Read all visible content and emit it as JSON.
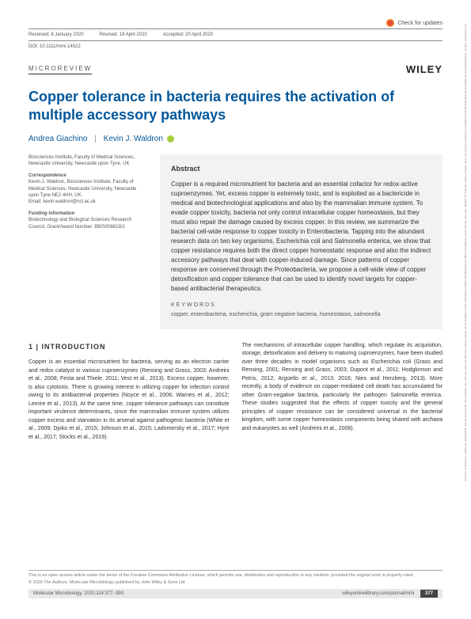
{
  "meta": {
    "checkUpdates": "Check for updates",
    "received": "Received: 8 January 2020",
    "revised": "Revised: 18 April 2020",
    "accepted": "Accepted: 20 April 2020",
    "doi": "DOI: 10.1111/mmi.14522",
    "type": "MICROREVIEW",
    "publisher": "WILEY"
  },
  "title": "Copper tolerance in bacteria requires the activation of multiple accessory pathways",
  "authors": {
    "a1": "Andrea Giachino",
    "a2": "Kevin J. Waldron"
  },
  "affil": {
    "inst": "Biosciences Institute, Faculty of Medical Sciences, Newcastle University, Newcastle upon Tyne, UK",
    "corrH": "Correspondence",
    "corr": "Kevin J. Waldron, Biosciences Institute, Faculty of Medical Sciences, Newcastle University, Newcastle upon Tyne NE2 4HH, UK.",
    "email": "Email: kevin.waldron@ncl.ac.uk",
    "fundH": "Funding information",
    "fund": "Biotechnology and Biological Sciences Research Council, Grant/Award Number: BB/S006818/1"
  },
  "abstract": {
    "h": "Abstract",
    "text": "Copper is a required micronutrient for bacteria and an essential cofactor for redox-active cuproenzymes. Yet, excess copper is extremely toxic, and is exploited as a bactericide in medical and biotechnological applications and also by the mammalian immune system. To evade copper toxicity, bacteria not only control intracellular copper homeostasis, but they must also repair the damage caused by excess copper. In this review, we summarize the bacterial cell-wide response to copper toxicity in Enterobacteria. Tapping into the abundant research data on two key organisms, Escherichia coli and Salmonella enterica, we show that copper resistance requires both the direct copper homeostatic response and also the indirect accessory pathways that deal with copper-induced damage. Since patterns of copper response are conserved through the Proteobacteria, we propose a cell-wide view of copper detoxification and copper tolerance that can be used to identify novel targets for copper-based antibacterial therapeutics.",
    "kwH": "KEYWORDS",
    "kw": "copper, enterobacteria, escherichia, gram negative bacteria, homeostasis, salmonella"
  },
  "intro": {
    "h": "1  |  INTRODUCTION",
    "p1": "Copper is an essential micronutrient for bacteria, serving as an electron carrier and redox catalyst in various cuproenzymes (Rensing and Grass, 2003; Andreini et al., 2008; Festa and Thiele, 2011; Vest et al., 2013). Excess copper, however, is also cytotoxic. There is growing interest in utilizing copper for infection control owing to its antibacterial properties (Noyce et al., 2006; Warnes et al., 2012; Lemire et al., 2013). At the same time, copper tolerance pathways can constitute important virulence determinants, since the mammalian immune system utilizes copper excess and starvation in its arsenal against pathogenic bacteria (White et al., 2009; Djoko et al., 2015; Johnson et al., 2015; Ladomersky et al., 2017; Hyre et al., 2017; Stocks et al., 2019).",
    "p2": "The mechanisms of intracellular copper handling, which regulate its acquisition, storage, detoxification and delivery to maturing cuproenzymes, have been studied over three decades in model organisms such as Escherichia coli (Grass and Rensing, 2001; Rensing and Grass, 2003; Dupont et al., 2011; Hodgkinson and Petris, 2012; Argüello et al., 2013; 2016; Nies and Herzberg, 2013). More recently, a body of evidence on copper-mediated cell death has accumulated for other Gram-negative bacteria, particularly the pathogen Salmonella enterica. These studies suggested that the effects of copper toxicity and the general principles of copper resistance can be considered universal in the bacterial kingdom, with some copper homeostasis components being shared with archaea and eukaryotes as well (Andreini et al., 2008)."
  },
  "footer": {
    "license1": "This is an open access article under the terms of the Creative Commons Attribution License, which permits use, distribution and reproduction in any medium, provided the original work is properly cited.",
    "license2": "© 2020 The Authors. Molecular Microbiology published by John Wiley & Sons Ltd",
    "journal": "Molecular Microbiology. 2020;114:377–390.",
    "url": "wileyonlinelibrary.com/journal/mmi",
    "page": "377"
  },
  "sidebar": "10.1111/mmi.14522, Downloaded from https://onlinelibrary.wiley.com/doi/10.1111/mmi.14522 by Test, Wiley Online Library on [date]. See the Terms and Conditions (https://onlinelibrary.wiley.com/terms-and-conditions) on Wiley Online Library for rules of use; OA articles are governed by the applicable Creative Commons License",
  "colors": {
    "titleBlue": "#01579b",
    "abstractBg": "#f2f2f2",
    "orcidGreen": "#a6ce39"
  }
}
